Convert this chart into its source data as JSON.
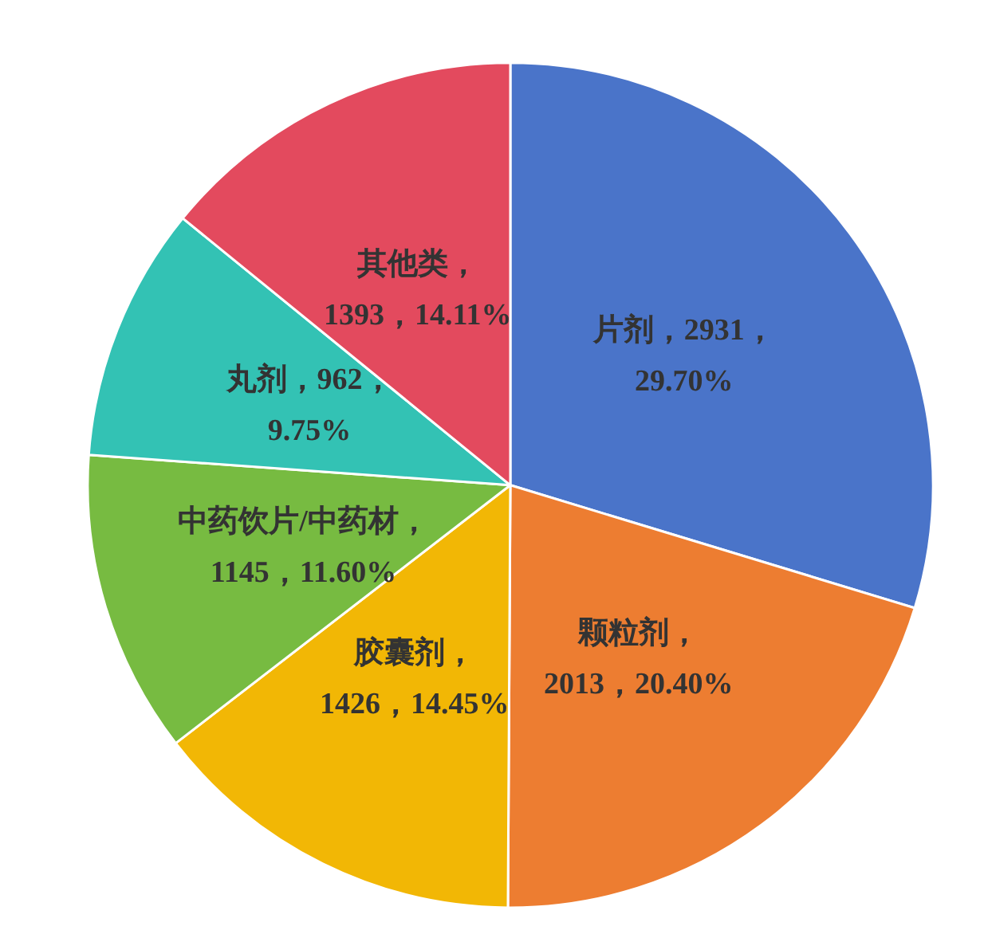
{
  "chart_data": {
    "type": "pie",
    "categories": [
      "片剂",
      "颗粒剂",
      "胶囊剂",
      "中药饮片/中药材",
      "丸剂",
      "其他类"
    ],
    "values": [
      2931,
      2013,
      1426,
      1145,
      962,
      1393
    ],
    "value_labels": [
      "，2931，29.70%",
      "，2013，20.40%",
      "，1426，14.45%",
      "，1145，11.60%",
      "，962，9.75%",
      "，1393，14.11%"
    ],
    "colors": [
      "#4a74c9",
      "#ed7d31",
      "#f2b705",
      "#77bb41",
      "#33c2b4",
      "#e34a5e"
    ],
    "legend": false
  }
}
